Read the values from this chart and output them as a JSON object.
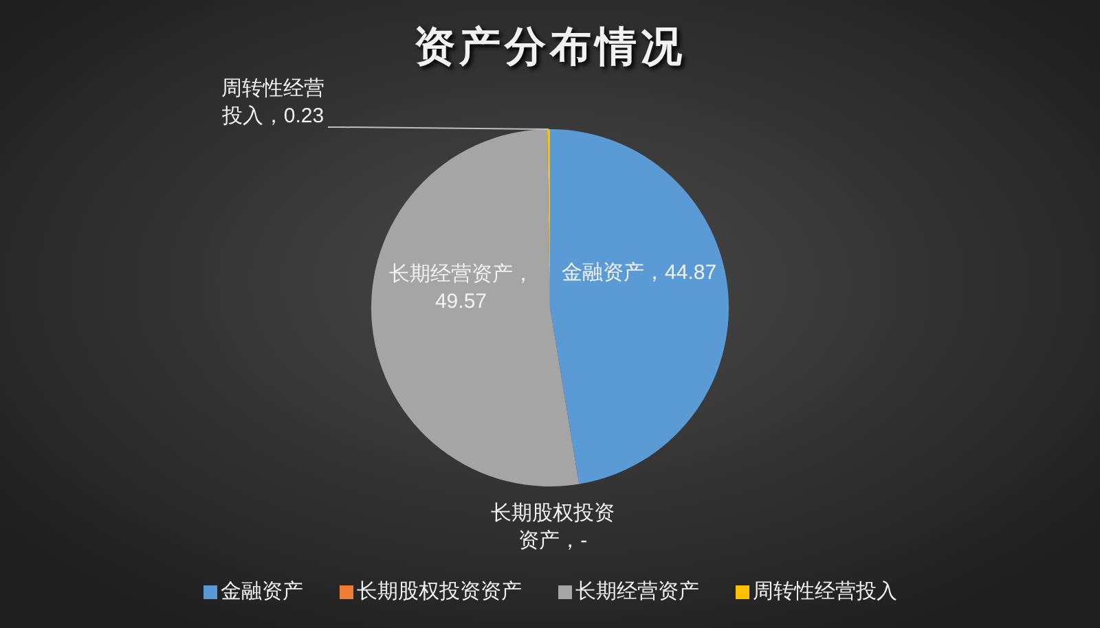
{
  "chart_data": {
    "type": "pie",
    "title": "资产分布情况",
    "categories": [
      "金融资产",
      "长期股权投资资产",
      "长期经营资产",
      "周转性经营投入"
    ],
    "values": [
      44.87,
      0,
      49.57,
      0.23
    ],
    "colors": [
      "#5b9bd5",
      "#ed7d31",
      "#a5a5a5",
      "#ffc000"
    ],
    "value_labels": [
      "金融资产，44.87",
      "长期股权投资资产，-",
      "长期经营资产，49.57",
      "周转性经营投入，0.23"
    ],
    "legend": "bottom"
  }
}
